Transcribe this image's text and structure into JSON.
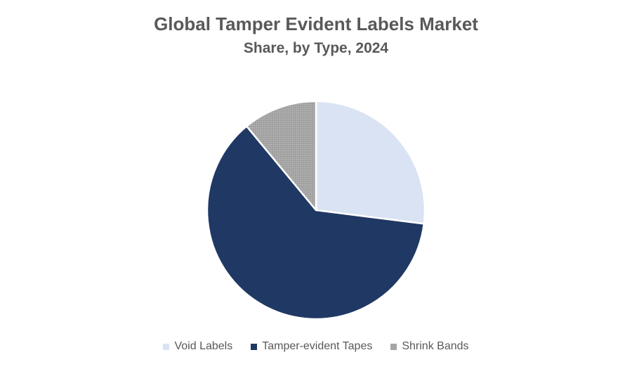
{
  "chart_data": {
    "type": "pie",
    "title": "Global Tamper Evident Labels Market",
    "subtitle": "Share, by Type, 2024",
    "categories": [
      "Void Labels",
      "Tamper-evident Tapes",
      "Shrink Bands"
    ],
    "values": [
      27,
      62,
      11
    ],
    "unit": "%",
    "colors": [
      "#DAE3F3",
      "#203864",
      "#A6A6A6"
    ],
    "start_angle_deg": 0,
    "direction": "clockwise",
    "legend_position": "bottom",
    "data_labels": false
  }
}
